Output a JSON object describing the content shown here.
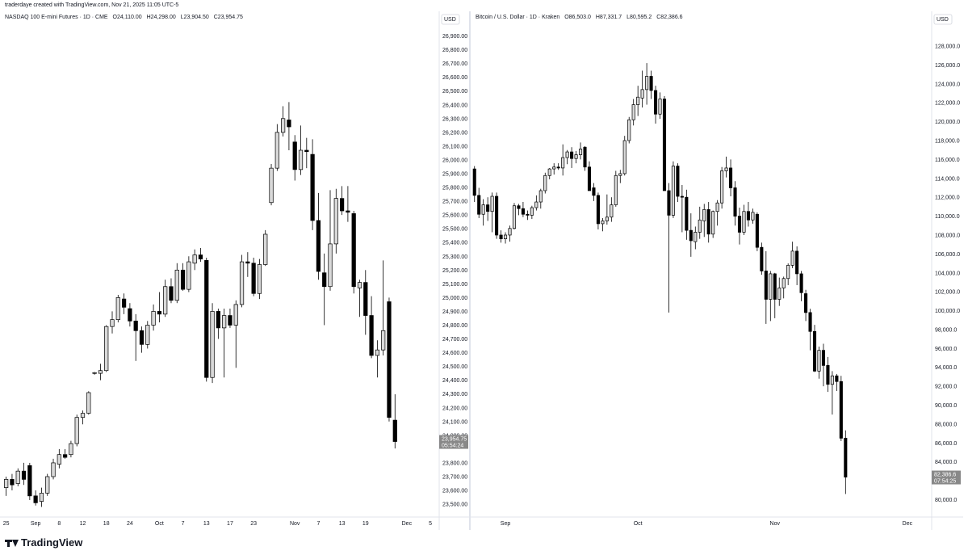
{
  "header": {
    "created_by": "traderdaye created with TradingView.com, Nov 21, 2025 11:05 UTC-5"
  },
  "footer": {
    "brand": "TradingView"
  },
  "colors": {
    "up_body": "#d9d9d9",
    "down_body": "#000000",
    "wick": "#000000",
    "grid": "#ffffff",
    "axis_text": "#131722",
    "price_tag": "#888888"
  },
  "chart_data": [
    {
      "type": "candlestick",
      "symbol": "NASDAQ 100 E-mini Futures · 1D · CME",
      "legend": {
        "open": "O24,110.00",
        "high": "H24,298.00",
        "low": "L23,904.50",
        "close": "C23,954.75"
      },
      "currency": "USD",
      "ylim": [
        23430,
        26950
      ],
      "y_ticks": [
        "26,900.00",
        "26,800.00",
        "26,700.00",
        "26,600.00",
        "26,500.00",
        "26,400.00",
        "26,300.00",
        "26,200.00",
        "26,100.00",
        "26,000.00",
        "25,900.00",
        "25,800.00",
        "25,700.00",
        "25,600.00",
        "25,500.00",
        "25,400.00",
        "25,300.00",
        "25,200.00",
        "25,100.00",
        "25,000.00",
        "24,900.00",
        "24,800.00",
        "24,700.00",
        "24,600.00",
        "24,500.00",
        "24,400.00",
        "24,300.00",
        "24,200.00",
        "24,100.00",
        "24,000.00",
        "23,800.00",
        "23,700.00",
        "23,600.00",
        "23,500.00"
      ],
      "y_tick_values": [
        26900,
        26800,
        26700,
        26600,
        26500,
        26400,
        26300,
        26200,
        26100,
        26000,
        25900,
        25800,
        25700,
        25600,
        25500,
        25400,
        25300,
        25200,
        25100,
        25000,
        24900,
        24800,
        24700,
        24600,
        24500,
        24400,
        24300,
        24200,
        24100,
        24000,
        23800,
        23700,
        23600,
        23500
      ],
      "price_tag": {
        "value": 23954.75,
        "label": "23,954.75",
        "countdown": "05:54:24"
      },
      "x_labels": [
        {
          "label": "25",
          "index": 0
        },
        {
          "label": "Sep",
          "index": 5
        },
        {
          "label": "8",
          "index": 9
        },
        {
          "label": "12",
          "index": 13
        },
        {
          "label": "18",
          "index": 17
        },
        {
          "label": "24",
          "index": 21
        },
        {
          "label": "Oct",
          "index": 26
        },
        {
          "label": "7",
          "index": 30
        },
        {
          "label": "13",
          "index": 34
        },
        {
          "label": "17",
          "index": 38
        },
        {
          "label": "23",
          "index": 42
        },
        {
          "label": "Nov",
          "index": 49
        },
        {
          "label": "7",
          "index": 53
        },
        {
          "label": "13",
          "index": 57
        },
        {
          "label": "19",
          "index": 61
        },
        {
          "label": "Dec",
          "index": 68
        },
        {
          "label": "5",
          "index": 72
        }
      ],
      "slots": 74,
      "ohlc": [
        [
          23620,
          23700,
          23560,
          23680
        ],
        [
          23680,
          23720,
          23600,
          23640
        ],
        [
          23650,
          23760,
          23630,
          23740
        ],
        [
          23740,
          23800,
          23640,
          23680
        ],
        [
          23780,
          23800,
          23530,
          23560
        ],
        [
          23560,
          23600,
          23490,
          23510
        ],
        [
          23520,
          23620,
          23480,
          23580
        ],
        [
          23580,
          23720,
          23560,
          23700
        ],
        [
          23700,
          23830,
          23680,
          23800
        ],
        [
          23790,
          23900,
          23760,
          23860
        ],
        [
          23860,
          23900,
          23830,
          23840
        ],
        [
          23860,
          23960,
          23840,
          23940
        ],
        [
          23940,
          24150,
          23920,
          24130
        ],
        [
          24130,
          24180,
          24080,
          24160
        ],
        [
          24160,
          24320,
          24150,
          24310
        ],
        [
          24450,
          24460,
          24440,
          24455
        ],
        [
          24450,
          24520,
          24400,
          24470
        ],
        [
          24470,
          24800,
          24460,
          24790
        ],
        [
          24790,
          24900,
          24740,
          24840
        ],
        [
          24840,
          25020,
          24820,
          25000
        ],
        [
          24990,
          25030,
          24880,
          24930
        ],
        [
          24920,
          24960,
          24790,
          24830
        ],
        [
          24830,
          24880,
          24540,
          24760
        ],
        [
          24760,
          24790,
          24600,
          24660
        ],
        [
          24660,
          24830,
          24630,
          24800
        ],
        [
          24800,
          24950,
          24760,
          24900
        ],
        [
          24900,
          25040,
          24820,
          24880
        ],
        [
          24880,
          25130,
          24860,
          25080
        ],
        [
          25080,
          25140,
          24960,
          24980
        ],
        [
          24980,
          25250,
          24960,
          25200
        ],
        [
          25200,
          25250,
          25050,
          25060
        ],
        [
          25060,
          25300,
          25040,
          25260
        ],
        [
          25250,
          25350,
          25200,
          25310
        ],
        [
          25310,
          25360,
          25260,
          25280
        ],
        [
          25270,
          25290,
          24390,
          24420
        ],
        [
          24420,
          24960,
          24380,
          24900
        ],
        [
          24900,
          24920,
          24700,
          24780
        ],
        [
          24780,
          24920,
          24420,
          24870
        ],
        [
          24870,
          24920,
          24780,
          24800
        ],
        [
          24800,
          24980,
          24490,
          24950
        ],
        [
          24950,
          25310,
          24930,
          25260
        ],
        [
          25260,
          25330,
          25150,
          25250
        ],
        [
          25250,
          25290,
          25010,
          25030
        ],
        [
          25030,
          25280,
          24990,
          25240
        ],
        [
          25240,
          25490,
          25230,
          25460
        ],
        [
          25690,
          25970,
          25670,
          25940
        ],
        [
          25940,
          26260,
          25920,
          26200
        ],
        [
          26200,
          26390,
          26170,
          26300
        ],
        [
          26290,
          26420,
          26070,
          26240
        ],
        [
          26130,
          26180,
          25850,
          25930
        ],
        [
          25930,
          26250,
          25890,
          26070
        ],
        [
          26070,
          26160,
          25940,
          26060
        ],
        [
          26040,
          26150,
          25490,
          25560
        ],
        [
          25560,
          25760,
          25130,
          25190
        ],
        [
          25180,
          25320,
          24800,
          25080
        ],
        [
          25080,
          25780,
          25050,
          25390
        ],
        [
          25390,
          25790,
          25320,
          25720
        ],
        [
          25720,
          25810,
          25600,
          25630
        ],
        [
          25630,
          25810,
          25550,
          25620
        ],
        [
          25610,
          25630,
          25030,
          25080
        ],
        [
          25070,
          25130,
          24860,
          25110
        ],
        [
          25110,
          25200,
          24730,
          24870
        ],
        [
          24870,
          25010,
          24560,
          24580
        ],
        [
          24580,
          24690,
          24420,
          24620
        ],
        [
          24620,
          25270,
          24580,
          24760
        ],
        [
          24970,
          25000,
          24100,
          24130
        ],
        [
          24110,
          24298,
          23904.5,
          23954.75
        ]
      ]
    },
    {
      "type": "candlestick",
      "symbol": "Bitcoin / U.S. Dollar · 1D · Kraken",
      "legend": {
        "open": "O86,503.0",
        "high": "H87,331.7",
        "low": "L80,595.2",
        "close": "C82,386.6"
      },
      "currency": "USD",
      "ylim": [
        78500,
        129800
      ],
      "y_ticks": [
        "128,000.0",
        "126,000.0",
        "124,000.0",
        "122,000.0",
        "120,000.0",
        "118,000.0",
        "116,000.0",
        "114,000.0",
        "112,000.0",
        "110,000.0",
        "108,000.0",
        "106,000.0",
        "104,000.0",
        "102,000.0",
        "100,000.0",
        "98,000.0",
        "96,000.0",
        "94,000.0",
        "92,000.0",
        "90,000.0",
        "88,000.0",
        "86,000.0",
        "84,000.0",
        "80,000.0"
      ],
      "y_tick_values": [
        128000,
        126000,
        124000,
        122000,
        120000,
        118000,
        116000,
        114000,
        112000,
        110000,
        108000,
        106000,
        104000,
        102000,
        100000,
        98000,
        96000,
        94000,
        92000,
        90000,
        88000,
        86000,
        84000,
        80000
      ],
      "price_tag": {
        "value": 82386.6,
        "label": "82,386.6",
        "countdown": "07:54:25"
      },
      "x_labels": [
        {
          "label": "Sep",
          "index": 7
        },
        {
          "label": "Oct",
          "index": 37
        },
        {
          "label": "Nov",
          "index": 68
        },
        {
          "label": "Dec",
          "index": 98
        }
      ],
      "slots": 104,
      "ohlc": [
        [
          115000,
          115300,
          111500,
          112200
        ],
        [
          112200,
          113000,
          109800,
          110200
        ],
        [
          110200,
          111800,
          109000,
          111200
        ],
        [
          111200,
          112000,
          109500,
          110500
        ],
        [
          110500,
          112500,
          108300,
          112100
        ],
        [
          112100,
          112500,
          107600,
          108000
        ],
        [
          108000,
          108500,
          107200,
          107600
        ],
        [
          107600,
          108300,
          107100,
          108000
        ],
        [
          108000,
          109000,
          107300,
          108700
        ],
        [
          108700,
          111400,
          108600,
          111100
        ],
        [
          111100,
          111300,
          110100,
          110800
        ],
        [
          110800,
          111500,
          109900,
          110200
        ],
        [
          110200,
          110600,
          109600,
          110100
        ],
        [
          110100,
          111100,
          109700,
          110900
        ],
        [
          110900,
          112200,
          110600,
          111500
        ],
        [
          111500,
          112900,
          110800,
          112700
        ],
        [
          112700,
          114600,
          112400,
          114300
        ],
        [
          114300,
          115100,
          113900,
          115000
        ],
        [
          115000,
          115600,
          114400,
          115200
        ],
        [
          115200,
          115600,
          114900,
          115100
        ],
        [
          115100,
          117600,
          114300,
          116200
        ],
        [
          116200,
          117000,
          115500,
          116800
        ],
        [
          116800,
          117300,
          115100,
          116100
        ],
        [
          116100,
          116900,
          115600,
          116500
        ],
        [
          116500,
          117800,
          116000,
          117100
        ],
        [
          117300,
          117400,
          114800,
          115200
        ],
        [
          115200,
          115800,
          112700,
          112700
        ],
        [
          113000,
          113500,
          111600,
          112200
        ],
        [
          112200,
          112500,
          108600,
          109200
        ],
        [
          109200,
          109800,
          108400,
          109500
        ],
        [
          109500,
          112300,
          109100,
          109900
        ],
        [
          109900,
          112000,
          109400,
          111200
        ],
        [
          111200,
          114800,
          111000,
          114300
        ],
        [
          114300,
          114900,
          113500,
          114500
        ],
        [
          114500,
          118500,
          114300,
          118000
        ],
        [
          118000,
          120500,
          117700,
          120200
        ],
        [
          120200,
          122400,
          119600,
          121800
        ],
        [
          121800,
          123800,
          120600,
          122600
        ],
        [
          122500,
          125400,
          121500,
          123400
        ],
        [
          123400,
          126200,
          121800,
          124800
        ],
        [
          124800,
          125400,
          122400,
          123300
        ],
        [
          123300,
          123800,
          119800,
          120800
        ],
        [
          120800,
          123100,
          120300,
          122400
        ],
        [
          122400,
          122700,
          113000,
          112700
        ],
        [
          112700,
          113500,
          99800,
          110100
        ],
        [
          110100,
          115800,
          109800,
          115300
        ],
        [
          115300,
          115600,
          111500,
          112100
        ],
        [
          112100,
          113300,
          108300,
          112000
        ],
        [
          112000,
          112800,
          107500,
          108500
        ],
        [
          108500,
          110300,
          105700,
          107400
        ],
        [
          107300,
          108900,
          106500,
          108300
        ],
        [
          108300,
          111000,
          107600,
          109600
        ],
        [
          109500,
          111300,
          107800,
          110700
        ],
        [
          110700,
          111500,
          107200,
          108100
        ],
        [
          108100,
          110600,
          107700,
          110500
        ],
        [
          110500,
          111700,
          109000,
          111400
        ],
        [
          111400,
          115200,
          110800,
          114800
        ],
        [
          114800,
          116300,
          114100,
          115100
        ],
        [
          115100,
          116000,
          112100,
          113000
        ],
        [
          113000,
          113700,
          109000,
          110000
        ],
        [
          110000,
          110900,
          107000,
          108300
        ],
        [
          108300,
          111200,
          108000,
          110500
        ],
        [
          110500,
          111500,
          108900,
          109600
        ],
        [
          109600,
          110800,
          109200,
          110400
        ],
        [
          110200,
          110400,
          106300,
          106700
        ],
        [
          106700,
          107200,
          103800,
          104200
        ],
        [
          104200,
          106300,
          98600,
          101200
        ],
        [
          101200,
          104200,
          98900,
          103900
        ],
        [
          103900,
          104000,
          99200,
          101200
        ],
        [
          101200,
          103500,
          100500,
          102400
        ],
        [
          102400,
          103600,
          101300,
          103400
        ],
        [
          103400,
          105000,
          102700,
          104800
        ],
        [
          104800,
          107300,
          104500,
          106300
        ],
        [
          106300,
          106800,
          102700,
          103900
        ],
        [
          103900,
          104200,
          101000,
          101900
        ],
        [
          101800,
          102200,
          98900,
          99800
        ],
        [
          99800,
          100200,
          95800,
          97800
        ],
        [
          97800,
          98500,
          93500,
          93600
        ],
        [
          93600,
          96200,
          92800,
          95800
        ],
        [
          95800,
          96500,
          92000,
          94200
        ],
        [
          94200,
          95100,
          91400,
          92200
        ],
        [
          92200,
          93600,
          89000,
          93100
        ],
        [
          93100,
          93300,
          91500,
          92500
        ],
        [
          92500,
          93100,
          86200,
          86500
        ],
        [
          86503,
          87331.7,
          80595.2,
          82386.6
        ]
      ]
    }
  ]
}
